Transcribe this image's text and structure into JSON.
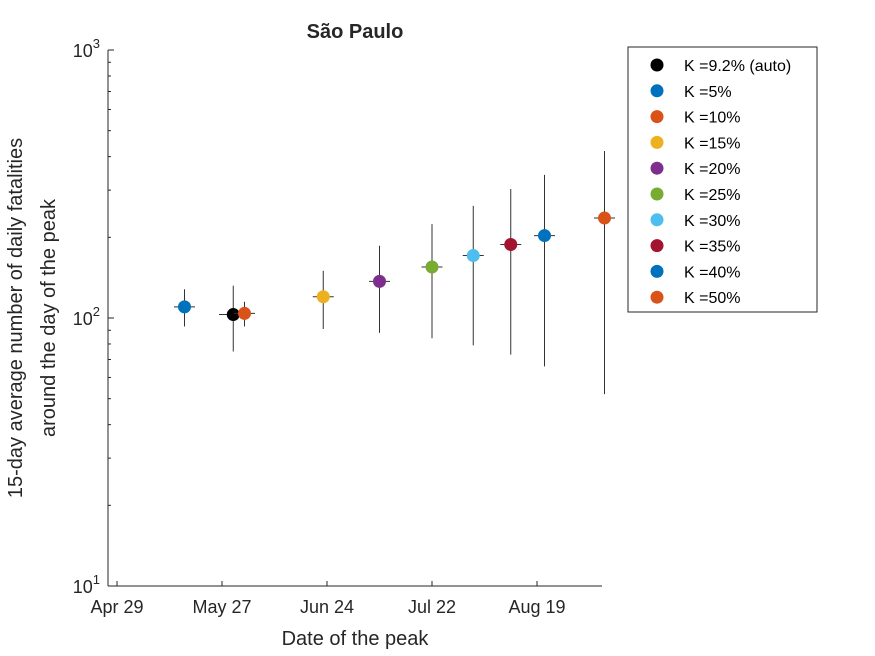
{
  "chart_data": {
    "type": "scatter",
    "title": "São Paulo",
    "xlabel": "Date of the peak",
    "ylabel_lines": [
      "15-day average number of daily fatalities",
      "around the day of the peak"
    ],
    "x_ticks": [
      "Apr 29",
      "May 27",
      "Jun 24",
      "Jul 22",
      "Aug 19"
    ],
    "y_scale": "log",
    "ylim": [
      10,
      1000
    ],
    "y_ticks": [
      {
        "base": "10",
        "exp": "1"
      },
      {
        "base": "10",
        "exp": "2"
      },
      {
        "base": "10",
        "exp": "3"
      }
    ],
    "legend_position": "right",
    "series": [
      {
        "name": "K =9.2% (auto)",
        "color": "#000000",
        "x": "2020-05-30",
        "y": 103,
        "ylow": 75,
        "yhigh": 132,
        "xerr_days": 3
      },
      {
        "name": "K =5%",
        "color": "#0072BD",
        "x": "2020-05-17",
        "y": 110,
        "ylow": 93,
        "yhigh": 128,
        "xerr_days": 2
      },
      {
        "name": "K =10%",
        "color": "#D95319",
        "x": "2020-06-02",
        "y": 104,
        "ylow": 93,
        "yhigh": 115,
        "xerr_days": 2
      },
      {
        "name": "K =15%",
        "color": "#EDB120",
        "x": "2020-06-23",
        "y": 120,
        "ylow": 91,
        "yhigh": 150,
        "xerr_days": 2
      },
      {
        "name": "K =20%",
        "color": "#7E2F8E",
        "x": "2020-07-08",
        "y": 137,
        "ylow": 88,
        "yhigh": 186,
        "xerr_days": 2
      },
      {
        "name": "K =25%",
        "color": "#77AC30",
        "x": "2020-07-22",
        "y": 155,
        "ylow": 84,
        "yhigh": 224,
        "xerr_days": 2
      },
      {
        "name": "K =30%",
        "color": "#4DBEEE",
        "x": "2020-08-02",
        "y": 171,
        "ylow": 79,
        "yhigh": 262,
        "xerr_days": 2
      },
      {
        "name": "K =35%",
        "color": "#A2142F",
        "x": "2020-08-12",
        "y": 188,
        "ylow": 73,
        "yhigh": 303,
        "xerr_days": 2
      },
      {
        "name": "K =40%",
        "color": "#0072BD",
        "x": "2020-08-21",
        "y": 203,
        "ylow": 66,
        "yhigh": 342,
        "xerr_days": 2
      },
      {
        "name": "K =50%",
        "color": "#D95319",
        "x": "2020-09-06",
        "y": 236,
        "ylow": 52,
        "yhigh": 420,
        "xerr_days": 2
      }
    ]
  }
}
